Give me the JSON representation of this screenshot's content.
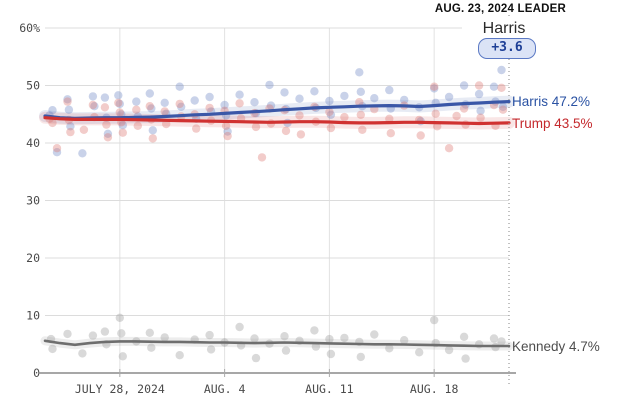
{
  "header": {
    "leader_caption": "AUG. 23, 2024 LEADER",
    "leader_name": "Harris",
    "leader_margin": "+3.6"
  },
  "series_labels": {
    "harris": "Harris 47.2%",
    "trump": "Trump 43.5%",
    "kennedy": "Kennedy 4.7%"
  },
  "colors": {
    "harris_line": "#3a57a7",
    "trump_line": "#d03231",
    "kennedy_line": "#6e6e6e",
    "harris_text": "#2a52a3",
    "trump_text": "#c4282c",
    "kennedy_text": "#4d4d4d",
    "harris_dot": "#7189c4",
    "trump_dot": "#dd7a74",
    "kennedy_dot": "#9a9a9a",
    "grid": "#dcdcdc",
    "vgrid": "#e2e2e2",
    "axis": "#8a8a8a",
    "tick": "#aaaaaa",
    "tick_text": "#4a4a4a",
    "leader_line": "#999999",
    "badge_bg": "#dbe3f6",
    "badge_border": "#5b79c4",
    "badge_text": "#1e3f96"
  },
  "chart_data": {
    "type": "line",
    "title": "AUG. 23, 2024 LEADER",
    "xlabel": "",
    "ylabel": "",
    "ylim": [
      0,
      60
    ],
    "x_domain_days": [
      0,
      31
    ],
    "grid": true,
    "legend_position": "right",
    "leader_day": 31,
    "y_ticks": [
      {
        "v": 0,
        "label": "0"
      },
      {
        "v": 10,
        "label": "10"
      },
      {
        "v": 20,
        "label": "20"
      },
      {
        "v": 30,
        "label": "30"
      },
      {
        "v": 40,
        "label": "40"
      },
      {
        "v": 50,
        "label": "50"
      },
      {
        "v": 60,
        "label": "60%"
      }
    ],
    "x_ticks": [
      {
        "day": 5,
        "label": "JULY 28, 2024"
      },
      {
        "day": 12,
        "label": "AUG. 4"
      },
      {
        "day": 19,
        "label": "AUG. 11"
      },
      {
        "day": 26,
        "label": "AUG. 18"
      }
    ],
    "series": [
      {
        "name": "Harris",
        "end_value": 47.2,
        "color_key": "harris_line",
        "dot_key": "harris_dot",
        "trend": [
          [
            0,
            44.7
          ],
          [
            1,
            44.4
          ],
          [
            2,
            44.3
          ],
          [
            3,
            44.35
          ],
          [
            4,
            44.4
          ],
          [
            5,
            44.4
          ],
          [
            6,
            44.45
          ],
          [
            7,
            44.5
          ],
          [
            8,
            44.6
          ],
          [
            9,
            44.75
          ],
          [
            10,
            44.9
          ],
          [
            11,
            45.0
          ],
          [
            12,
            45.15
          ],
          [
            13,
            45.3
          ],
          [
            14,
            45.45
          ],
          [
            15,
            45.6
          ],
          [
            16,
            45.8
          ],
          [
            17,
            45.95
          ],
          [
            18,
            46.1
          ],
          [
            19,
            46.2
          ],
          [
            20,
            46.3
          ],
          [
            21,
            46.4
          ],
          [
            22,
            46.45
          ],
          [
            23,
            46.5
          ],
          [
            24,
            46.45
          ],
          [
            25,
            46.35
          ],
          [
            26,
            46.5
          ],
          [
            27,
            46.7
          ],
          [
            28,
            46.85
          ],
          [
            29,
            46.95
          ],
          [
            30,
            47.1
          ],
          [
            31,
            47.2
          ]
        ],
        "polls": [
          [
            0.3,
            44.8
          ],
          [
            0.5,
            45.7
          ],
          [
            0.8,
            38.4
          ],
          [
            1.5,
            47.6
          ],
          [
            1.6,
            45.8
          ],
          [
            1.7,
            42.9
          ],
          [
            2.5,
            38.2
          ],
          [
            3.2,
            48.1
          ],
          [
            3.3,
            46.4
          ],
          [
            4.0,
            47.9
          ],
          [
            4.1,
            44.4
          ],
          [
            4.2,
            41.6
          ],
          [
            4.9,
            48.3
          ],
          [
            5.0,
            46.8
          ],
          [
            5.1,
            45.0
          ],
          [
            5.2,
            43.1
          ],
          [
            6.1,
            47.2
          ],
          [
            6.2,
            44.6
          ],
          [
            7.0,
            48.6
          ],
          [
            7.1,
            46.0
          ],
          [
            7.2,
            42.2
          ],
          [
            8.0,
            47.0
          ],
          [
            8.1,
            45.1
          ],
          [
            9.0,
            49.8
          ],
          [
            9.1,
            46.3
          ],
          [
            10.0,
            47.4
          ],
          [
            10.1,
            44.2
          ],
          [
            11.0,
            48.0
          ],
          [
            11.1,
            45.5
          ],
          [
            12.0,
            46.6
          ],
          [
            12.1,
            44.8
          ],
          [
            12.2,
            42.0
          ],
          [
            13.0,
            48.4
          ],
          [
            14.0,
            47.1
          ],
          [
            14.1,
            45.2
          ],
          [
            15.0,
            50.1
          ],
          [
            15.1,
            46.5
          ],
          [
            16.0,
            48.8
          ],
          [
            16.1,
            45.9
          ],
          [
            16.2,
            43.5
          ],
          [
            17.0,
            47.7
          ],
          [
            18.0,
            49.0
          ],
          [
            18.1,
            46.1
          ],
          [
            19.0,
            47.3
          ],
          [
            19.1,
            44.9
          ],
          [
            20.0,
            48.2
          ],
          [
            21.0,
            52.3
          ],
          [
            21.1,
            48.9
          ],
          [
            21.2,
            46.4
          ],
          [
            22.0,
            47.8
          ],
          [
            23.0,
            49.2
          ],
          [
            23.1,
            46.0
          ],
          [
            24.0,
            47.5
          ],
          [
            25.0,
            46.2
          ],
          [
            25.1,
            43.8
          ],
          [
            26.0,
            49.5
          ],
          [
            26.1,
            47.0
          ],
          [
            27.0,
            48.0
          ],
          [
            28.0,
            50.0
          ],
          [
            28.1,
            46.7
          ],
          [
            29.0,
            48.5
          ],
          [
            29.1,
            45.6
          ],
          [
            30.0,
            49.8
          ],
          [
            30.1,
            47.2
          ],
          [
            30.5,
            52.7
          ],
          [
            30.6,
            46.3
          ]
        ]
      },
      {
        "name": "Trump",
        "end_value": 43.5,
        "color_key": "trump_line",
        "dot_key": "trump_dot",
        "trend": [
          [
            0,
            44.4
          ],
          [
            1,
            44.2
          ],
          [
            2,
            44.1
          ],
          [
            3,
            44.1
          ],
          [
            4,
            44.1
          ],
          [
            5,
            44.1
          ],
          [
            6,
            44.05
          ],
          [
            7,
            44.0
          ],
          [
            8,
            43.95
          ],
          [
            9,
            43.9
          ],
          [
            10,
            43.85
          ],
          [
            11,
            43.8
          ],
          [
            12,
            43.75
          ],
          [
            13,
            43.7
          ],
          [
            14,
            43.65
          ],
          [
            15,
            43.6
          ],
          [
            16,
            43.65
          ],
          [
            17,
            43.7
          ],
          [
            18,
            43.7
          ],
          [
            19,
            43.65
          ],
          [
            20,
            43.55
          ],
          [
            21,
            43.5
          ],
          [
            22,
            43.5
          ],
          [
            23,
            43.55
          ],
          [
            24,
            43.6
          ],
          [
            25,
            43.6
          ],
          [
            26,
            43.55
          ],
          [
            27,
            43.5
          ],
          [
            28,
            43.45
          ],
          [
            29,
            43.4
          ],
          [
            30,
            43.45
          ],
          [
            31,
            43.5
          ]
        ],
        "polls": [
          [
            0.3,
            44.2
          ],
          [
            0.5,
            43.5
          ],
          [
            0.8,
            39.1
          ],
          [
            1.5,
            47.2
          ],
          [
            1.6,
            44.0
          ],
          [
            1.7,
            41.9
          ],
          [
            2.6,
            42.3
          ],
          [
            3.2,
            46.6
          ],
          [
            3.3,
            44.5
          ],
          [
            4.0,
            46.2
          ],
          [
            4.1,
            43.2
          ],
          [
            4.2,
            41.0
          ],
          [
            4.9,
            47.0
          ],
          [
            5.0,
            45.3
          ],
          [
            5.1,
            43.6
          ],
          [
            5.2,
            41.8
          ],
          [
            6.1,
            45.8
          ],
          [
            6.2,
            43.0
          ],
          [
            7.0,
            46.4
          ],
          [
            7.1,
            44.1
          ],
          [
            7.2,
            40.8
          ],
          [
            8.0,
            45.5
          ],
          [
            8.1,
            43.3
          ],
          [
            9.0,
            46.8
          ],
          [
            9.1,
            44.6
          ],
          [
            10.0,
            45.0
          ],
          [
            10.1,
            42.5
          ],
          [
            11.0,
            46.1
          ],
          [
            11.1,
            43.9
          ],
          [
            12.0,
            45.6
          ],
          [
            12.1,
            43.0
          ],
          [
            12.2,
            41.2
          ],
          [
            13.0,
            46.9
          ],
          [
            13.1,
            44.3
          ],
          [
            14.0,
            45.2
          ],
          [
            14.1,
            42.8
          ],
          [
            14.5,
            37.5
          ],
          [
            15.0,
            46.0
          ],
          [
            15.1,
            43.4
          ],
          [
            16.0,
            45.7
          ],
          [
            16.1,
            42.1
          ],
          [
            17.0,
            44.8
          ],
          [
            17.1,
            41.5
          ],
          [
            18.0,
            46.3
          ],
          [
            18.1,
            43.7
          ],
          [
            19.0,
            45.4
          ],
          [
            19.1,
            42.6
          ],
          [
            20.0,
            44.5
          ],
          [
            21.0,
            47.1
          ],
          [
            21.1,
            44.9
          ],
          [
            21.2,
            42.3
          ],
          [
            22.0,
            45.9
          ],
          [
            23.0,
            44.2
          ],
          [
            23.1,
            41.7
          ],
          [
            24.0,
            46.5
          ],
          [
            25.0,
            44.0
          ],
          [
            25.1,
            41.3
          ],
          [
            26.0,
            49.8
          ],
          [
            26.1,
            45.1
          ],
          [
            26.2,
            42.9
          ],
          [
            27.0,
            39.1
          ],
          [
            27.5,
            44.7
          ],
          [
            28.0,
            46.0
          ],
          [
            28.1,
            43.2
          ],
          [
            29.0,
            50.0
          ],
          [
            29.1,
            44.4
          ],
          [
            30.0,
            46.6
          ],
          [
            30.1,
            43.0
          ],
          [
            30.5,
            49.6
          ],
          [
            30.6,
            45.8
          ]
        ]
      },
      {
        "name": "Kennedy",
        "end_value": 4.7,
        "color_key": "kennedy_line",
        "dot_key": "kennedy_dot",
        "trend": [
          [
            0,
            5.6
          ],
          [
            1,
            5.2
          ],
          [
            2,
            4.9
          ],
          [
            3,
            5.2
          ],
          [
            4,
            5.4
          ],
          [
            5,
            5.5
          ],
          [
            6,
            5.5
          ],
          [
            7,
            5.45
          ],
          [
            8,
            5.4
          ],
          [
            9,
            5.4
          ],
          [
            10,
            5.35
          ],
          [
            11,
            5.3
          ],
          [
            12,
            5.3
          ],
          [
            13,
            5.25
          ],
          [
            14,
            5.2
          ],
          [
            15,
            5.25
          ],
          [
            16,
            5.3
          ],
          [
            17,
            5.25
          ],
          [
            18,
            5.2
          ],
          [
            19,
            5.15
          ],
          [
            20,
            5.1
          ],
          [
            21,
            5.05
          ],
          [
            22,
            5.0
          ],
          [
            23,
            5.0
          ],
          [
            24,
            4.95
          ],
          [
            25,
            4.9
          ],
          [
            26,
            4.85
          ],
          [
            27,
            4.8
          ],
          [
            28,
            4.75
          ],
          [
            29,
            4.7
          ],
          [
            30,
            4.7
          ],
          [
            31,
            4.7
          ]
        ],
        "polls": [
          [
            0.4,
            5.9
          ],
          [
            0.5,
            4.2
          ],
          [
            1.5,
            6.8
          ],
          [
            2.5,
            3.4
          ],
          [
            3.2,
            6.5
          ],
          [
            4.0,
            7.2
          ],
          [
            4.1,
            5.0
          ],
          [
            5.0,
            9.6
          ],
          [
            5.1,
            6.9
          ],
          [
            5.2,
            2.9
          ],
          [
            6.1,
            5.5
          ],
          [
            7.0,
            7.0
          ],
          [
            7.1,
            4.4
          ],
          [
            8.0,
            6.2
          ],
          [
            9.0,
            3.1
          ],
          [
            10.0,
            5.8
          ],
          [
            11.0,
            6.6
          ],
          [
            11.1,
            4.1
          ],
          [
            12.0,
            5.3
          ],
          [
            13.0,
            8.0
          ],
          [
            13.1,
            4.8
          ],
          [
            14.0,
            6.0
          ],
          [
            14.1,
            2.6
          ],
          [
            15.0,
            5.1
          ],
          [
            16.0,
            6.4
          ],
          [
            16.1,
            3.9
          ],
          [
            17.0,
            5.6
          ],
          [
            18.0,
            7.4
          ],
          [
            18.1,
            4.6
          ],
          [
            19.0,
            5.9
          ],
          [
            19.1,
            3.3
          ],
          [
            20.0,
            6.1
          ],
          [
            21.0,
            5.4
          ],
          [
            21.1,
            2.8
          ],
          [
            22.0,
            6.7
          ],
          [
            23.0,
            4.3
          ],
          [
            24.0,
            5.7
          ],
          [
            25.0,
            3.6
          ],
          [
            26.0,
            9.2
          ],
          [
            26.1,
            5.2
          ],
          [
            27.0,
            4.0
          ],
          [
            28.0,
            6.3
          ],
          [
            28.1,
            2.5
          ],
          [
            29.0,
            5.0
          ],
          [
            30.0,
            6.0
          ],
          [
            30.1,
            4.5
          ],
          [
            30.5,
            5.5
          ]
        ]
      }
    ]
  }
}
